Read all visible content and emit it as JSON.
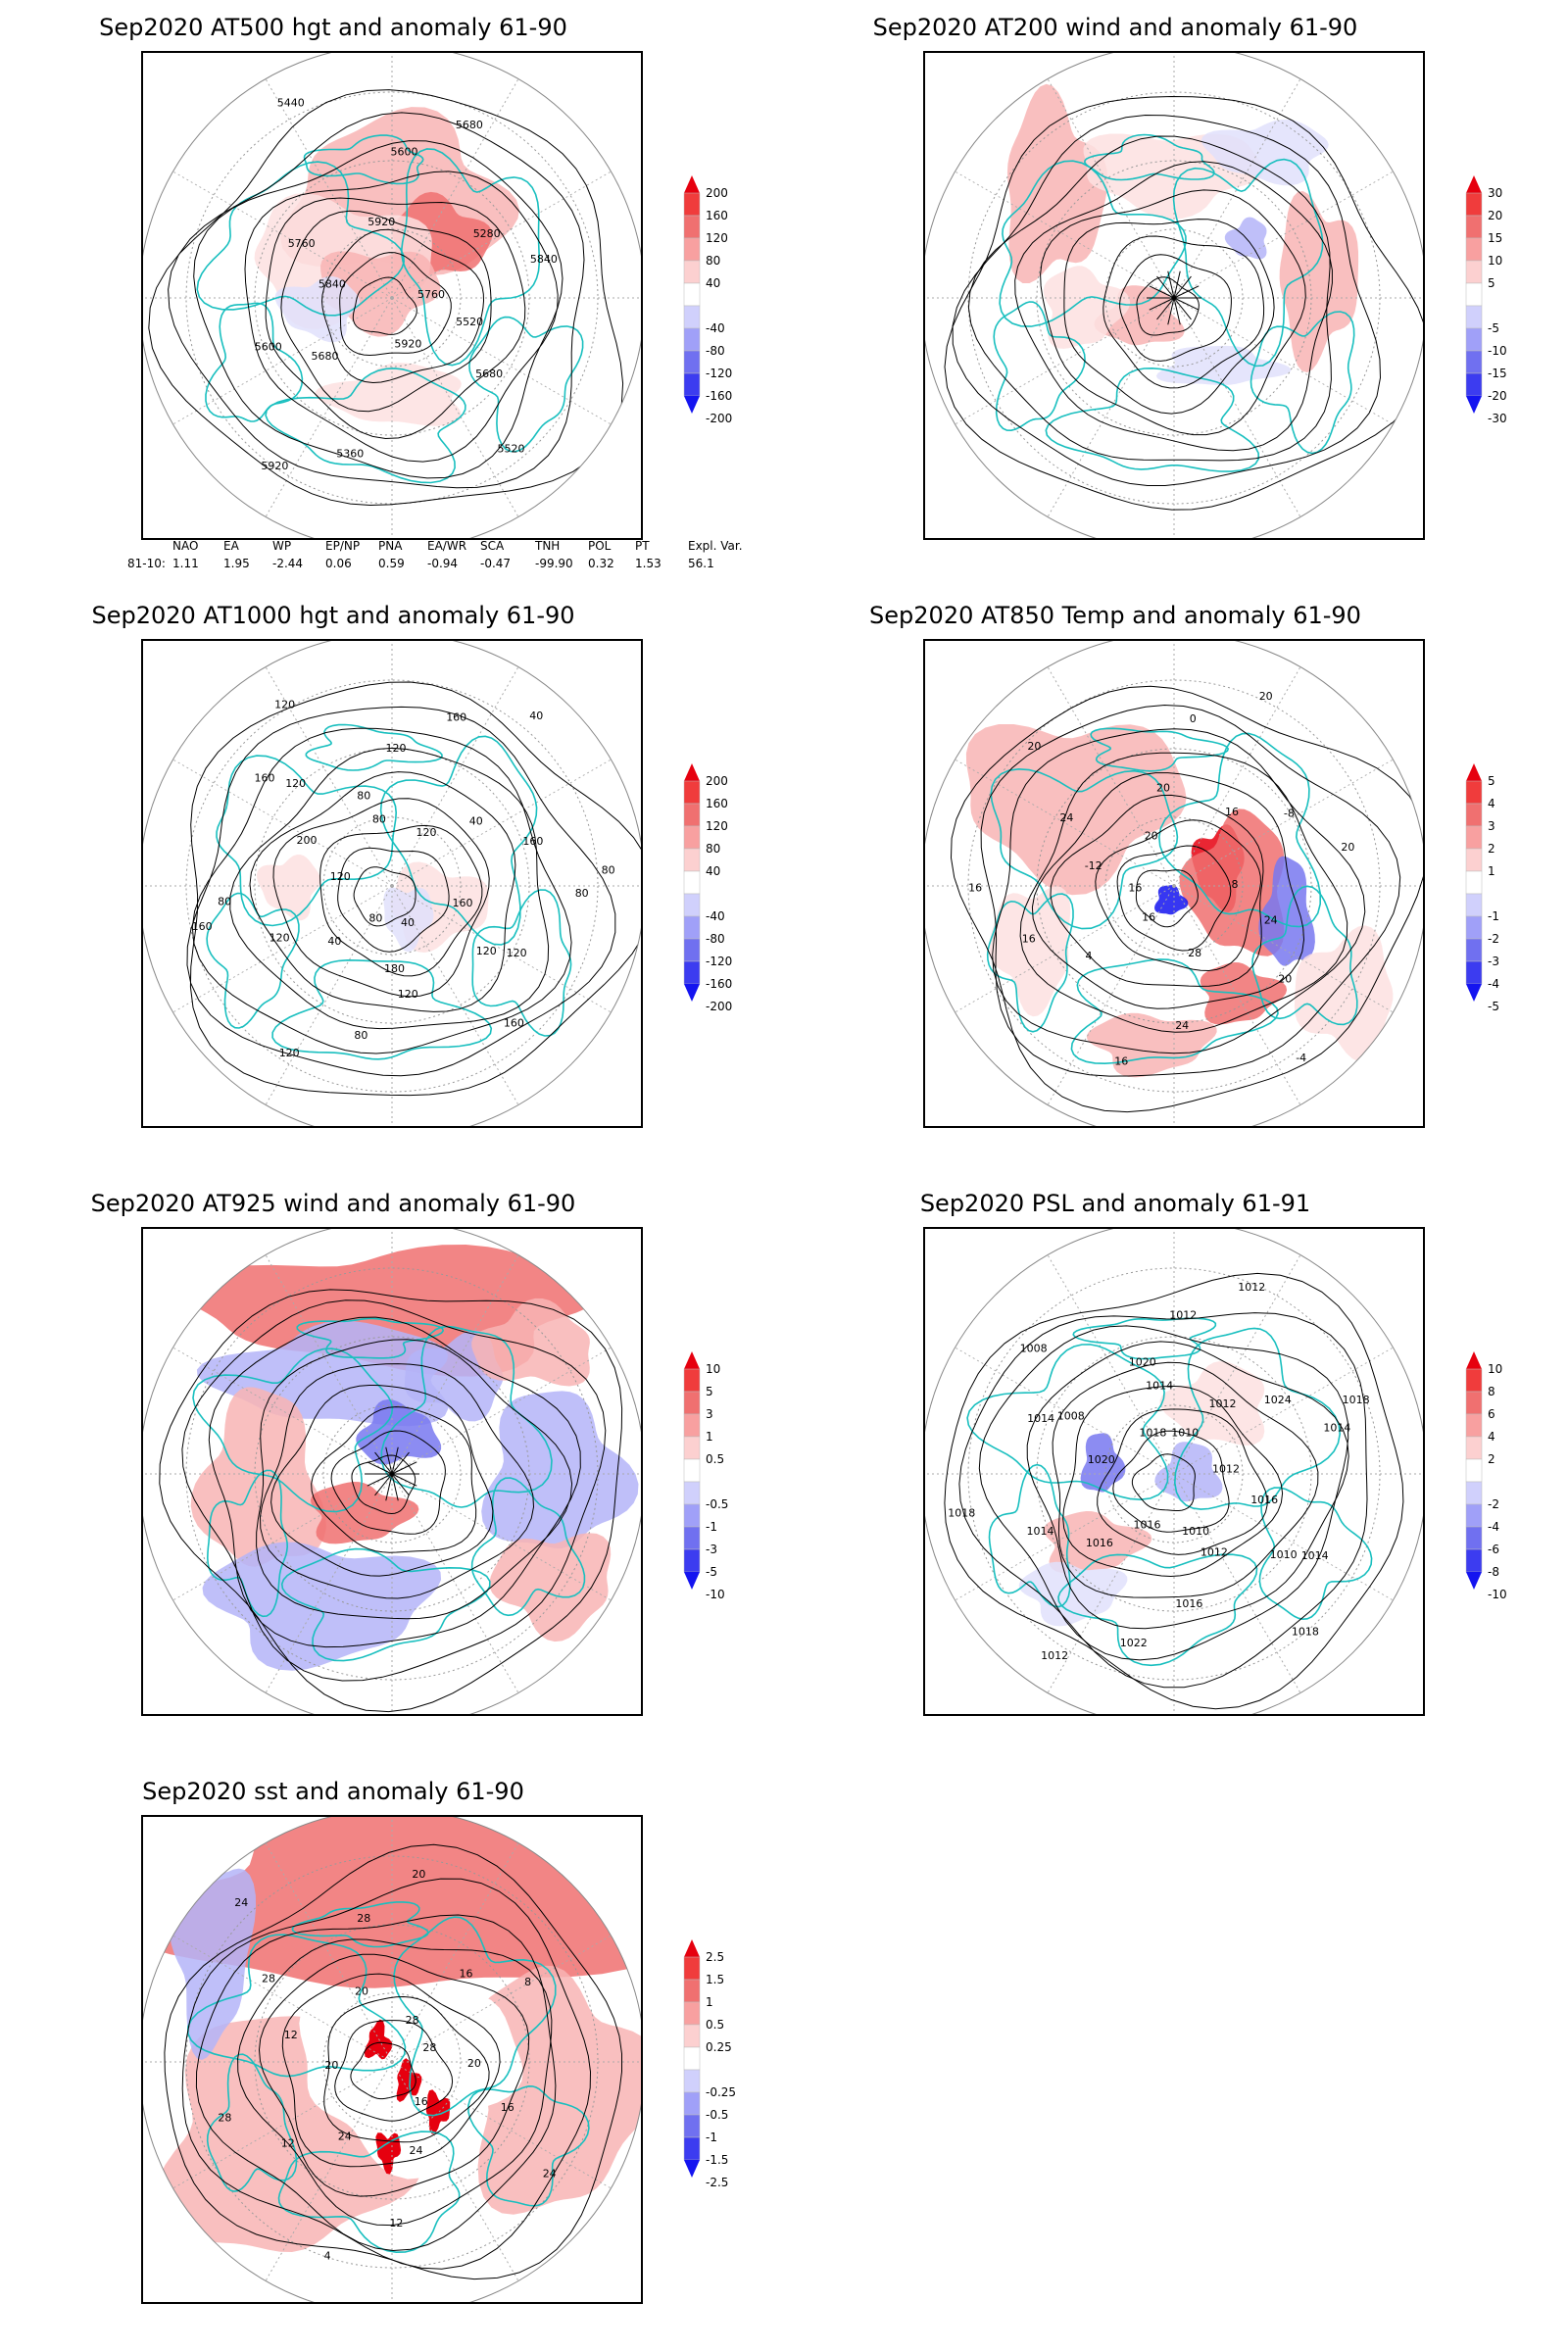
{
  "panels": [
    {
      "id": "p1",
      "title": "Sep2020 AT500 hgt and anomaly 61-90",
      "palette": "hgt",
      "contour_labels": [
        "5760",
        "5680",
        "5600",
        "5520",
        "5840",
        "5280",
        "5360",
        "5440",
        "5520",
        "5600",
        "5680",
        "5920",
        "5760",
        "5840",
        "5920",
        "5920",
        "5680"
      ],
      "colorbar": [
        "200",
        "160",
        "120",
        "80",
        "40",
        "-40",
        "-80",
        "-120",
        "-160",
        "-200"
      ]
    },
    {
      "id": "p2",
      "title": "Sep2020 AT200 wind and anomaly 61-90",
      "palette": "wind",
      "contour_labels": [],
      "colorbar": [
        "30",
        "20",
        "15",
        "10",
        "5",
        "-5",
        "-10",
        "-15",
        "-20",
        "-30"
      ]
    },
    {
      "id": "p3",
      "title": "Sep2020 AT1000 hgt and anomaly 61-90",
      "palette": "hgt1000",
      "contour_labels": [
        "80",
        "80",
        "120",
        "160",
        "120",
        "120",
        "160",
        "80",
        "40",
        "120",
        "160",
        "120",
        "40",
        "80",
        "120",
        "160",
        "120",
        "160",
        "40",
        "200",
        "160",
        "120",
        "80",
        "120",
        "80",
        "40",
        "180",
        "120",
        "80"
      ],
      "colorbar": [
        "200",
        "160",
        "120",
        "80",
        "40",
        "-40",
        "-80",
        "-120",
        "-160",
        "-200"
      ]
    },
    {
      "id": "p4",
      "title": "Sep2020 AT850 Temp and anomaly 61-90",
      "palette": "temp",
      "contour_labels": [
        "16",
        "16",
        "24",
        "20",
        "8",
        "4",
        "0",
        "-4",
        "-12",
        "-8",
        "16",
        "20",
        "24",
        "16",
        "20",
        "28",
        "24",
        "20",
        "16",
        "20",
        "20",
        "16"
      ],
      "colorbar": [
        "5",
        "4",
        "3",
        "2",
        "1",
        "-1",
        "-2",
        "-3",
        "-4",
        "-5"
      ]
    },
    {
      "id": "p5",
      "title": "Sep2020 AT925 wind and anomaly 61-90",
      "palette": "wind925",
      "contour_labels": [],
      "colorbar": [
        "10",
        "5",
        "3",
        "1",
        "0.5",
        "-0.5",
        "-1",
        "-3",
        "-5",
        "-10"
      ]
    },
    {
      "id": "p6",
      "title": "Sep2020 PSL and anomaly 61-91",
      "palette": "psl",
      "contour_labels": [
        "1010",
        "1012",
        "1014",
        "1018",
        "1016",
        "1020",
        "1014",
        "1018",
        "1012",
        "1016",
        "1008",
        "1012",
        "1016",
        "1012",
        "1018",
        "1020",
        "1024",
        "1022",
        "1018",
        "1016",
        "1014",
        "1012",
        "1010",
        "1008",
        "1014",
        "1012",
        "1014",
        "1010"
      ],
      "colorbar": [
        "10",
        "8",
        "6",
        "4",
        "2",
        "-2",
        "-4",
        "-6",
        "-8",
        "-10"
      ]
    },
    {
      "id": "p7",
      "title": "Sep2020 sst and anomaly 61-90",
      "palette": "sst",
      "contour_labels": [
        "28",
        "24",
        "28",
        "24",
        "20",
        "16",
        "12",
        "24",
        "20",
        "12",
        "20",
        "16",
        "12",
        "8",
        "4",
        "20",
        "16",
        "28",
        "28",
        "24",
        "28"
      ],
      "colorbar": [
        "2.5",
        "1.5",
        "1",
        "0.5",
        "0.25",
        "-0.25",
        "-0.5",
        "-1",
        "-1.5",
        "-2.5"
      ]
    }
  ],
  "index_table": {
    "headers": [
      "NAO",
      "EA",
      "WP",
      "EP/NP",
      "PNA",
      "EA/WR",
      "SCA",
      "TNH",
      "POL",
      "PT",
      "Expl. Var."
    ],
    "row_label": "81-10:",
    "values": [
      "1.11",
      "1.95",
      "-2.44",
      "0.06",
      "0.59",
      "-0.94",
      "-0.47",
      "-99.90",
      "0.32",
      "1.53",
      "56.1"
    ]
  },
  "colors": {
    "coast": "#19bfbf",
    "red_strong": "#e6000f",
    "red_mid": "#f07070",
    "red_light": "#f8b4b4",
    "red_pale": "#fde0e0",
    "blue_pale": "#e0e0fc",
    "blue_light": "#b4b4f8",
    "blue_mid": "#7878f0",
    "blue_strong": "#1414f0"
  }
}
